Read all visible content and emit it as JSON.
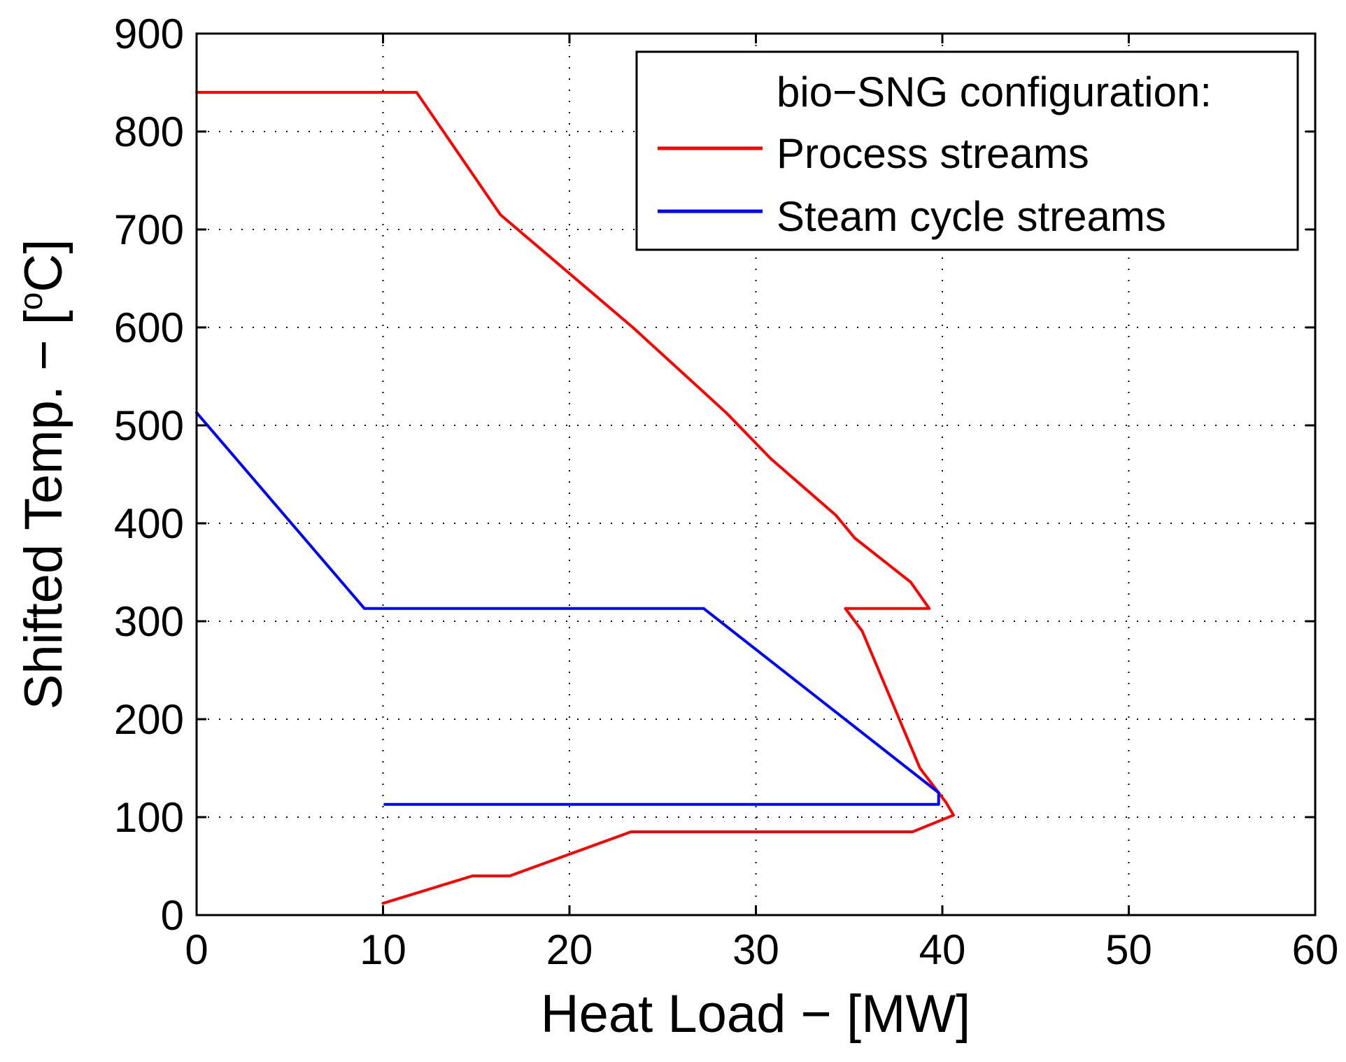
{
  "chart_data": {
    "type": "line",
    "xlabel": "Heat Load − [MW]",
    "ylabel_main": "Shifted Temp. − [",
    "ylabel_sup": "o",
    "ylabel_end": "C]",
    "xlim": [
      0,
      60
    ],
    "ylim": [
      0,
      900
    ],
    "xticks": [
      0,
      10,
      20,
      30,
      40,
      50,
      60
    ],
    "yticks": [
      0,
      100,
      200,
      300,
      400,
      500,
      600,
      700,
      800,
      900
    ],
    "grid": true,
    "legend": {
      "title": "bio−SNG configuration:",
      "placement": "top-right"
    },
    "series": [
      {
        "name": "Process streams",
        "color": "#ff0000",
        "x": [
          0,
          11.8,
          16.3,
          23.4,
          28.4,
          30.8,
          34.3,
          35.3,
          38.3,
          39.3,
          34.8,
          35.7,
          38.8,
          40.2,
          40.6,
          38.4,
          23.3,
          16.8,
          14.8,
          10.0
        ],
        "y": [
          840,
          840,
          715,
          600,
          513,
          466,
          408,
          385,
          340,
          313,
          313,
          290,
          150,
          115,
          102,
          85,
          85,
          40,
          40,
          12
        ]
      },
      {
        "name": "Steam cycle streams",
        "color": "#0000ff",
        "x": [
          0,
          9.0,
          27.2,
          39.8,
          39.8,
          10.1
        ],
        "y": [
          513,
          313,
          313,
          125,
          113,
          113
        ]
      }
    ]
  }
}
